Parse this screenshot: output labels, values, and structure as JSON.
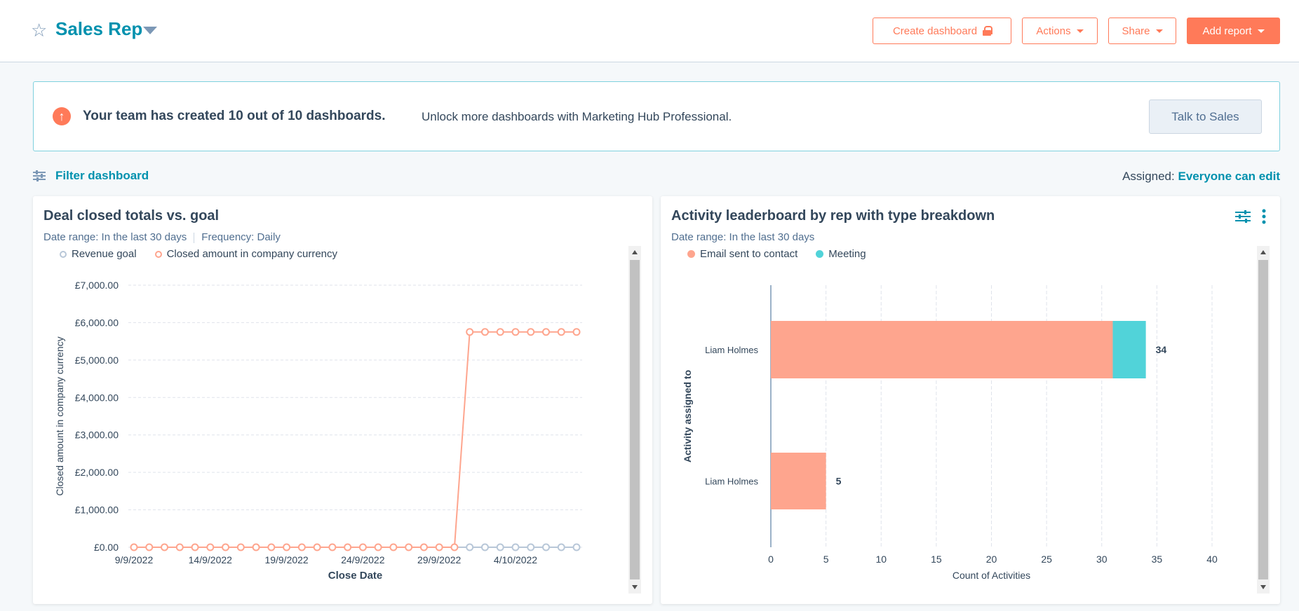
{
  "header": {
    "title": "Sales Rep",
    "buttons": {
      "create": "Create dashboard",
      "actions": "Actions",
      "share": "Share",
      "add_report": "Add report"
    }
  },
  "banner": {
    "headline": "Your team has created 10 out of 10 dashboards.",
    "message": "Unlock more dashboards with Marketing Hub Professional.",
    "cta": "Talk to Sales"
  },
  "filter": {
    "label": "Filter dashboard",
    "assigned_label": "Assigned:",
    "assigned_value": "Everyone can edit"
  },
  "colors": {
    "accent": "#ff7a59",
    "teal": "#0091ae",
    "email": "#fea58e",
    "meeting": "#51d3d9",
    "goal": "#b8c7d8"
  },
  "chart_data": [
    {
      "type": "line",
      "title": "Deal closed totals vs. goal",
      "date_range": "Date range: In the last 30 days",
      "frequency": "Frequency: Daily",
      "xlabel": "Close Date",
      "ylabel": "Closed amount in company currency",
      "ylim": [
        0,
        7000
      ],
      "yticks": [
        "£0.00",
        "£1,000.00",
        "£2,000.00",
        "£3,000.00",
        "£4,000.00",
        "£5,000.00",
        "£6,000.00",
        "£7,000.00"
      ],
      "xticks": [
        "9/9/2022",
        "14/9/2022",
        "19/9/2022",
        "24/9/2022",
        "29/9/2022",
        "4/10/2022"
      ],
      "x": [
        "9/9/2022",
        "10/9/2022",
        "11/9/2022",
        "12/9/2022",
        "13/9/2022",
        "14/9/2022",
        "15/9/2022",
        "16/9/2022",
        "17/9/2022",
        "18/9/2022",
        "19/9/2022",
        "20/9/2022",
        "21/9/2022",
        "22/9/2022",
        "23/9/2022",
        "24/9/2022",
        "25/9/2022",
        "26/9/2022",
        "27/9/2022",
        "28/9/2022",
        "29/9/2022",
        "30/9/2022",
        "1/10/2022",
        "2/10/2022",
        "3/10/2022",
        "4/10/2022",
        "5/10/2022",
        "6/10/2022",
        "7/10/2022",
        "8/10/2022"
      ],
      "grid": true,
      "legend": "top-left",
      "series": [
        {
          "name": "Revenue goal",
          "values": [
            0,
            0,
            0,
            0,
            0,
            0,
            0,
            0,
            0,
            0,
            0,
            0,
            0,
            0,
            0,
            0,
            0,
            0,
            0,
            0,
            0,
            0,
            0,
            0,
            0,
            0,
            0,
            0,
            0,
            0
          ]
        },
        {
          "name": "Closed amount in company currency",
          "values": [
            0,
            0,
            0,
            0,
            0,
            0,
            0,
            0,
            0,
            0,
            0,
            0,
            0,
            0,
            0,
            0,
            0,
            0,
            0,
            0,
            0,
            0,
            5750,
            5750,
            5750,
            5750,
            5750,
            5750,
            5750,
            5750
          ]
        }
      ]
    },
    {
      "type": "bar",
      "orientation": "horizontal",
      "stacked": true,
      "title": "Activity leaderboard by rep with type breakdown",
      "date_range": "Date range: In the last 30 days",
      "xlabel": "Count of Activities",
      "ylabel": "Activity assigned to",
      "xlim": [
        0,
        40
      ],
      "xticks": [
        "0",
        "5",
        "10",
        "15",
        "20",
        "25",
        "30",
        "35",
        "40"
      ],
      "categories": [
        "Liam Holmes",
        "Liam Holmes"
      ],
      "totals": [
        "34",
        "5"
      ],
      "legend": "top-left",
      "series": [
        {
          "name": "Email sent to contact",
          "values": [
            31,
            5
          ]
        },
        {
          "name": "Meeting",
          "values": [
            3,
            0
          ]
        }
      ]
    }
  ]
}
